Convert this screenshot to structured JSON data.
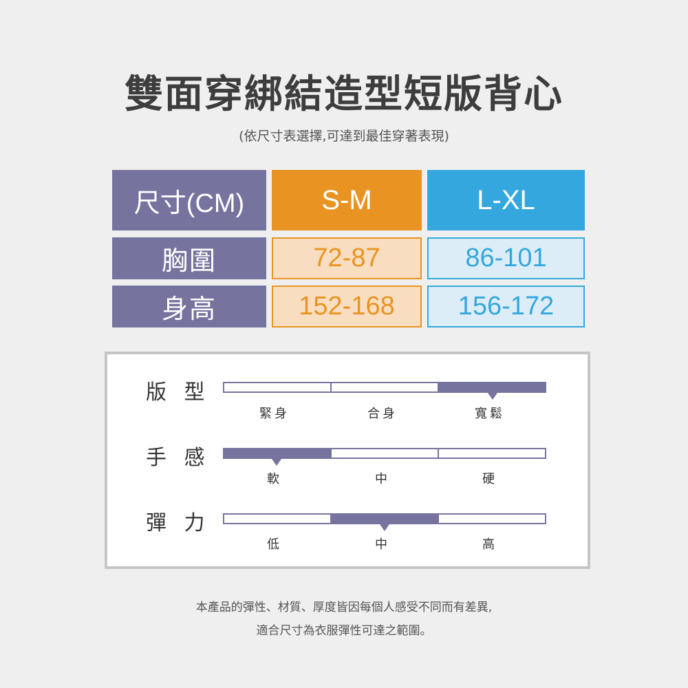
{
  "title": "雙面穿綁結造型短版背心",
  "subtitle": "(依尺寸表選擇,可達到最佳穿著表現)",
  "size_table": {
    "header": {
      "label": "尺寸(CM)",
      "size1": "S-M",
      "size2": "L-XL"
    },
    "rows": [
      {
        "label": "胸圍",
        "size1": "72-87",
        "size2": "86-101"
      },
      {
        "label": "身高",
        "size1": "152-168",
        "size2": "156-172"
      }
    ]
  },
  "scales": [
    {
      "label": "版 型",
      "options": [
        "緊身",
        "合身",
        "寬鬆"
      ],
      "selected": 2
    },
    {
      "label": "手 感",
      "options": [
        "軟",
        "中",
        "硬"
      ],
      "selected": 0
    },
    {
      "label": "彈 力",
      "options": [
        "低",
        "中",
        "高"
      ],
      "selected": 1
    }
  ],
  "note": {
    "line1": "本產品的彈性、材質、厚度皆因每個人感受不同而有差異,",
    "line2": "適合尺寸為衣服彈性可達之範圍。"
  },
  "colors": {
    "purple": "#77739f",
    "orange": "#e99422",
    "blue": "#34a8de"
  }
}
